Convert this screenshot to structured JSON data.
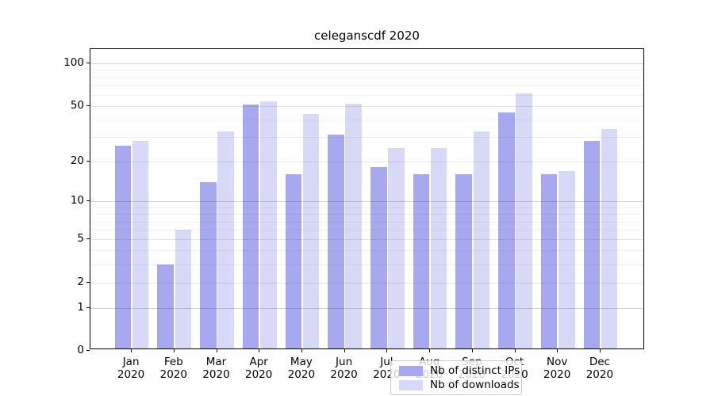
{
  "chart_data": {
    "type": "bar",
    "title": "celeganscdf 2020",
    "xlabel": "",
    "ylabel": "",
    "year": "2020",
    "months": [
      "Jan",
      "Feb",
      "Mar",
      "Apr",
      "May",
      "Jun",
      "Jul",
      "Aug",
      "Sep",
      "Oct",
      "Nov",
      "Dec"
    ],
    "series": [
      {
        "name": "Nb of distinct IPs",
        "color": "#a8a8f0",
        "values": [
          26,
          3,
          14,
          51,
          16,
          31,
          18,
          16,
          16,
          45,
          16,
          28
        ]
      },
      {
        "name": "Nb of downloads",
        "color": "#d8d8f7",
        "values": [
          28,
          6,
          33,
          54,
          44,
          52,
          25,
          25,
          33,
          61,
          17,
          34
        ]
      }
    ],
    "y_scale": "log10(1+y)",
    "ylim": [
      0,
      125
    ],
    "y_ticks": [
      0,
      1,
      2,
      5,
      10,
      20,
      50,
      100
    ],
    "y_major_gridlines": [
      1,
      10,
      100
    ],
    "y_mid_gridlines": [
      2,
      5,
      20,
      50
    ],
    "y_minor_gridlines": [
      3,
      4,
      6,
      7,
      8,
      9,
      30,
      40,
      60,
      70,
      80,
      90
    ],
    "grid": true,
    "legend_position": "lower center"
  }
}
